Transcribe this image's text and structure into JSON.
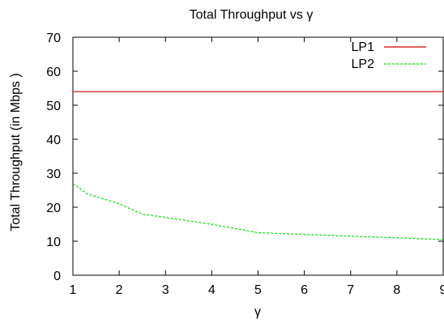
{
  "chart_data": {
    "type": "line",
    "title": "Total Throughput  vs  γ",
    "xlabel": "γ",
    "ylabel": "Total Throughput (in Mbps )",
    "xlim": [
      1,
      9
    ],
    "ylim": [
      0,
      70
    ],
    "xticks": [
      "1",
      "2",
      "3",
      "4",
      "5",
      "6",
      "7",
      "8",
      "9"
    ],
    "yticks": [
      "0",
      "10",
      "20",
      "30",
      "40",
      "50",
      "60",
      "70"
    ],
    "grid": false,
    "legend_position": "top-right",
    "series": [
      {
        "name": "LP1",
        "color": "#cc0000",
        "line_style": "solid",
        "x": [
          1,
          9
        ],
        "y": [
          54,
          54
        ]
      },
      {
        "name": "LP2",
        "color": "#00dd00",
        "line_style": "dashed",
        "x": [
          1,
          1.3,
          2,
          2.5,
          3,
          4,
          5,
          6,
          7,
          8,
          9
        ],
        "y": [
          27,
          24,
          21,
          18,
          17,
          15,
          12.5,
          12,
          11.5,
          11,
          10.5
        ]
      }
    ]
  }
}
